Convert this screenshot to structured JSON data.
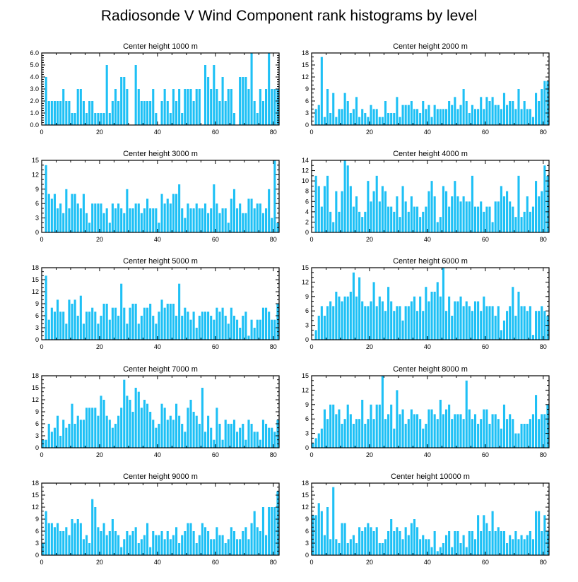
{
  "title": "Radiosonde V Wind Component rank histograms by level",
  "colors": {
    "bar": "#1ec0f5",
    "axis": "#000000",
    "background": "#ffffff"
  },
  "chart_data": [
    {
      "type": "bar",
      "title": "Center height 1000 m",
      "xlim": [
        0,
        82
      ],
      "ylim": [
        0,
        6
      ],
      "xticks": [
        0,
        20,
        40,
        60,
        80
      ],
      "yticks": [
        0,
        1,
        2,
        3,
        4,
        5,
        6
      ],
      "ytick_labels": [
        "0.0",
        "1.0",
        "2.0",
        "3.0",
        "4.0",
        "5.0",
        "6.0"
      ],
      "values": [
        0,
        4,
        2,
        2,
        2,
        2,
        2,
        3,
        2,
        2,
        1,
        1,
        3,
        3,
        2,
        1,
        2,
        2,
        1,
        1,
        1,
        1,
        5,
        1,
        2,
        3,
        2,
        4,
        4,
        3,
        0,
        0,
        5,
        3,
        2,
        2,
        2,
        2,
        3,
        1,
        0,
        2,
        3,
        2,
        1,
        3,
        2,
        3,
        1,
        3,
        3,
        3,
        2,
        3,
        3,
        0,
        5,
        4,
        3,
        5,
        3,
        2,
        4,
        2,
        3,
        3,
        1,
        0,
        4,
        4,
        4,
        3,
        6,
        2,
        1,
        3,
        2,
        3,
        6,
        3,
        3,
        3
      ]
    },
    {
      "type": "bar",
      "title": "Center height 2000 m",
      "xlim": [
        0,
        82
      ],
      "ylim": [
        0,
        18
      ],
      "xticks": [
        0,
        20,
        40,
        60,
        80
      ],
      "yticks": [
        0,
        3,
        6,
        9,
        12,
        15,
        18
      ],
      "values": [
        0,
        4,
        5,
        17,
        2,
        9,
        3,
        8,
        2,
        4,
        4,
        8,
        6,
        3,
        4,
        7,
        2,
        4,
        3,
        2,
        5,
        4,
        4,
        2,
        2,
        6,
        3,
        3,
        3,
        7,
        2,
        5,
        5,
        5,
        6,
        4,
        4,
        3,
        6,
        4,
        5,
        2,
        5,
        4,
        4,
        4,
        4,
        6,
        5,
        7,
        4,
        5,
        9,
        6,
        3,
        5,
        4,
        4,
        7,
        4,
        7,
        6,
        7,
        5,
        5,
        4,
        8,
        5,
        6,
        6,
        4,
        9,
        4,
        6,
        4,
        4,
        2,
        8,
        6,
        9,
        11,
        11
      ]
    },
    {
      "type": "bar",
      "title": "Center height 3000 m",
      "xlim": [
        0,
        82
      ],
      "ylim": [
        0,
        15
      ],
      "xticks": [
        0,
        20,
        40,
        60,
        80
      ],
      "yticks": [
        0,
        3,
        6,
        9,
        12,
        15
      ],
      "values": [
        0,
        14,
        8,
        7,
        8,
        5,
        6,
        4,
        9,
        5,
        8,
        8,
        6,
        5,
        8,
        4,
        2,
        6,
        6,
        6,
        6,
        4,
        5,
        2,
        6,
        5,
        6,
        5,
        4,
        9,
        5,
        5,
        6,
        6,
        4,
        5,
        7,
        5,
        5,
        5,
        2,
        8,
        6,
        7,
        6,
        8,
        8,
        10,
        5,
        3,
        6,
        5,
        5,
        6,
        5,
        5,
        6,
        4,
        5,
        10,
        6,
        4,
        5,
        5,
        2,
        7,
        9,
        5,
        6,
        4,
        4,
        7,
        7,
        5,
        6,
        6,
        4,
        5,
        9,
        3,
        15,
        2
      ]
    },
    {
      "type": "bar",
      "title": "Center height 4000 m",
      "xlim": [
        0,
        82
      ],
      "ylim": [
        0,
        14
      ],
      "xticks": [
        0,
        20,
        40,
        60,
        80
      ],
      "yticks": [
        0,
        2,
        4,
        6,
        8,
        10,
        12,
        14
      ],
      "values": [
        0,
        11,
        9,
        5,
        9,
        11,
        4,
        2,
        8,
        4,
        8,
        14,
        13,
        9,
        5,
        7,
        4,
        3,
        4,
        10,
        6,
        8,
        11,
        6,
        9,
        8,
        5,
        5,
        4,
        7,
        3,
        9,
        6,
        4,
        7,
        5,
        5,
        3,
        4,
        5,
        8,
        10,
        7,
        2,
        3,
        9,
        8,
        5,
        7,
        10,
        7,
        6,
        7,
        6,
        6,
        11,
        5,
        5,
        6,
        4,
        5,
        5,
        2,
        6,
        6,
        9,
        7,
        8,
        6,
        5,
        3,
        11,
        3,
        4,
        7,
        4,
        5,
        10,
        7,
        8,
        13,
        11
      ]
    },
    {
      "type": "bar",
      "title": "Center height 5000 m",
      "xlim": [
        0,
        82
      ],
      "ylim": [
        0,
        18
      ],
      "xticks": [
        0,
        20,
        40,
        60,
        80
      ],
      "yticks": [
        0,
        3,
        6,
        9,
        12,
        15,
        18
      ],
      "values": [
        0,
        16,
        5,
        8,
        7,
        10,
        7,
        7,
        4,
        10,
        9,
        10,
        6,
        11,
        4,
        7,
        7,
        8,
        7,
        4,
        6,
        9,
        9,
        5,
        8,
        8,
        6,
        14,
        8,
        4,
        8,
        9,
        9,
        4,
        6,
        8,
        8,
        9,
        6,
        4,
        7,
        10,
        8,
        9,
        9,
        9,
        6,
        14,
        6,
        8,
        7,
        5,
        7,
        3,
        6,
        7,
        7,
        7,
        6,
        5,
        8,
        7,
        8,
        6,
        4,
        8,
        6,
        5,
        3,
        6,
        7,
        1,
        5,
        3,
        5,
        5,
        8,
        8,
        7,
        5,
        5,
        9
      ]
    },
    {
      "type": "bar",
      "title": "Center height 6000 m",
      "xlim": [
        0,
        82
      ],
      "ylim": [
        0,
        15
      ],
      "xticks": [
        0,
        20,
        40,
        60,
        80
      ],
      "yticks": [
        0,
        3,
        6,
        9,
        12,
        15
      ],
      "values": [
        0,
        2,
        5,
        7,
        5,
        7,
        8,
        7,
        10,
        9,
        8,
        9,
        9,
        10,
        14,
        9,
        13,
        8,
        7,
        7,
        8,
        12,
        7,
        9,
        8,
        6,
        11,
        8,
        6,
        7,
        7,
        4,
        7,
        7,
        8,
        9,
        6,
        9,
        6,
        11,
        8,
        10,
        10,
        12,
        9,
        15,
        6,
        9,
        5,
        8,
        8,
        9,
        7,
        8,
        7,
        6,
        8,
        8,
        6,
        9,
        7,
        7,
        7,
        5,
        7,
        2,
        4,
        6,
        7,
        11,
        5,
        10,
        7,
        7,
        6,
        7,
        1,
        6,
        6,
        7,
        6,
        5
      ]
    },
    {
      "type": "bar",
      "title": "Center height 7000 m",
      "xlim": [
        0,
        82
      ],
      "ylim": [
        0,
        18
      ],
      "xticks": [
        0,
        20,
        40,
        60,
        80
      ],
      "yticks": [
        0,
        3,
        6,
        9,
        12,
        15,
        18
      ],
      "values": [
        2,
        2,
        6,
        4,
        5,
        8,
        3,
        7,
        5,
        6,
        11,
        6,
        8,
        7,
        7,
        10,
        10,
        10,
        10,
        8,
        13,
        12,
        8,
        7,
        5,
        6,
        8,
        10,
        17,
        13,
        12,
        9,
        15,
        14,
        10,
        12,
        11,
        9,
        7,
        5,
        6,
        11,
        10,
        7,
        8,
        7,
        11,
        8,
        6,
        4,
        10,
        12,
        9,
        8,
        6,
        15,
        4,
        8,
        5,
        2,
        10,
        6,
        2,
        7,
        6,
        6,
        7,
        4,
        5,
        6,
        2,
        7,
        6,
        4,
        4,
        2,
        7,
        6,
        5,
        5,
        4,
        7
      ]
    },
    {
      "type": "bar",
      "title": "Center height 8000 m",
      "xlim": [
        0,
        82
      ],
      "ylim": [
        0,
        15
      ],
      "xticks": [
        0,
        20,
        40,
        60,
        80
      ],
      "yticks": [
        0,
        3,
        6,
        9,
        12,
        15
      ],
      "values": [
        1,
        2,
        3,
        4,
        8,
        6,
        9,
        9,
        7,
        8,
        5,
        6,
        9,
        7,
        5,
        6,
        6,
        10,
        5,
        6,
        9,
        6,
        9,
        9,
        15,
        6,
        7,
        9,
        4,
        12,
        7,
        8,
        5,
        6,
        8,
        7,
        7,
        6,
        4,
        5,
        8,
        8,
        7,
        6,
        10,
        7,
        8,
        9,
        6,
        7,
        7,
        7,
        6,
        14,
        8,
        6,
        7,
        5,
        6,
        8,
        8,
        5,
        7,
        7,
        6,
        4,
        9,
        6,
        7,
        6,
        3,
        3,
        5,
        5,
        5,
        6,
        7,
        11,
        6,
        7,
        7,
        9
      ]
    },
    {
      "type": "bar",
      "title": "Center height 9000 m",
      "xlim": [
        0,
        82
      ],
      "ylim": [
        0,
        18
      ],
      "xticks": [
        0,
        20,
        40,
        60,
        80
      ],
      "yticks": [
        0,
        3,
        6,
        9,
        12,
        15,
        18
      ],
      "values": [
        3,
        11,
        8,
        8,
        7,
        8,
        6,
        6,
        7,
        5,
        9,
        8,
        9,
        8,
        4,
        5,
        3,
        14,
        12,
        7,
        6,
        8,
        5,
        6,
        9,
        6,
        5,
        2,
        4,
        6,
        5,
        6,
        7,
        3,
        4,
        5,
        8,
        2,
        6,
        5,
        5,
        6,
        4,
        6,
        4,
        5,
        7,
        3,
        5,
        6,
        8,
        8,
        6,
        3,
        5,
        8,
        7,
        6,
        4,
        4,
        7,
        5,
        5,
        3,
        4,
        7,
        6,
        4,
        4,
        6,
        7,
        4,
        8,
        11,
        7,
        6,
        12,
        5,
        12,
        12,
        12,
        16
      ]
    },
    {
      "type": "bar",
      "title": "Center height 10000 m",
      "xlim": [
        0,
        82
      ],
      "ylim": [
        0,
        18
      ],
      "xticks": [
        0,
        20,
        40,
        60,
        80
      ],
      "yticks": [
        0,
        3,
        6,
        9,
        12,
        15,
        18
      ],
      "values": [
        10,
        10,
        13,
        11,
        5,
        12,
        4,
        17,
        4,
        3,
        8,
        8,
        3,
        4,
        5,
        3,
        7,
        6,
        7,
        8,
        7,
        6,
        7,
        3,
        3,
        4,
        6,
        9,
        6,
        7,
        6,
        4,
        7,
        5,
        8,
        9,
        7,
        4,
        5,
        4,
        4,
        2,
        6,
        1,
        2,
        3,
        5,
        6,
        2,
        6,
        6,
        3,
        5,
        2,
        6,
        6,
        4,
        10,
        6,
        10,
        8,
        6,
        11,
        6,
        7,
        6,
        6,
        3,
        5,
        4,
        6,
        4,
        5,
        4,
        5,
        6,
        4,
        11,
        11,
        6,
        10,
        6
      ]
    }
  ]
}
